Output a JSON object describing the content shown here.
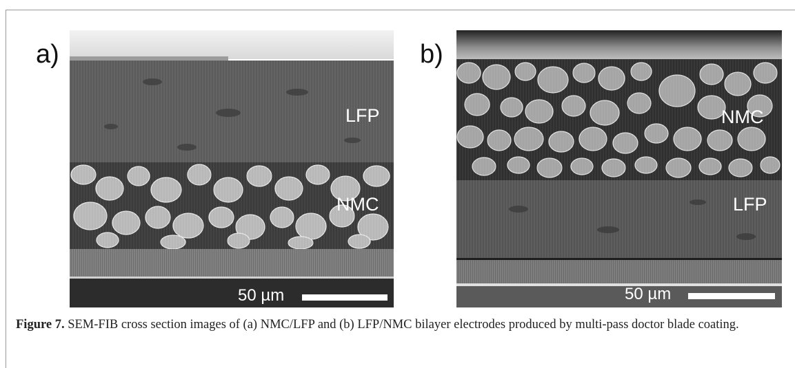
{
  "panel_a": {
    "letter": "a)",
    "labels": {
      "top_layer": "LFP",
      "bottom_layer": "NMC"
    },
    "scale_bar_text": "50 µm"
  },
  "panel_b": {
    "letter": "b)",
    "labels": {
      "top_layer": "NMC",
      "bottom_layer": "LFP"
    },
    "scale_bar_text": "50 µm"
  },
  "caption": {
    "label": "Figure 7.",
    "text": " SEM-FIB cross section images of (a) NMC/LFP and (b) LFP/NMC bilayer electrodes produced by multi-pass doctor blade coating."
  }
}
